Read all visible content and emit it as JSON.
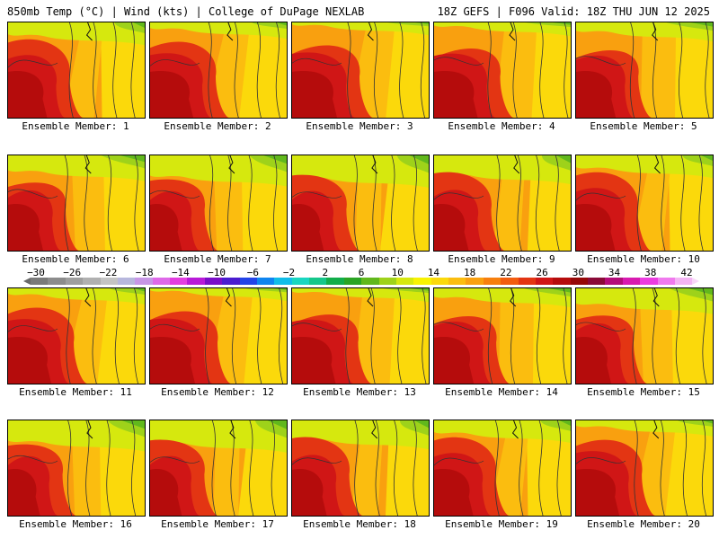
{
  "header": {
    "left_title": "850mb Temp (°C) | Wind (kts) | College of DuPage NEXLAB",
    "right_title": "18Z GEFS | F096 Valid: 18Z THU JUN 12 2025"
  },
  "members": [
    {
      "label": "Ensemble Member: 1"
    },
    {
      "label": "Ensemble Member: 2"
    },
    {
      "label": "Ensemble Member: 3"
    },
    {
      "label": "Ensemble Member: 4"
    },
    {
      "label": "Ensemble Member: 5"
    },
    {
      "label": "Ensemble Member: 6"
    },
    {
      "label": "Ensemble Member: 7"
    },
    {
      "label": "Ensemble Member: 8"
    },
    {
      "label": "Ensemble Member: 9"
    },
    {
      "label": "Ensemble Member: 10"
    },
    {
      "label": "Ensemble Member: 11"
    },
    {
      "label": "Ensemble Member: 12"
    },
    {
      "label": "Ensemble Member: 13"
    },
    {
      "label": "Ensemble Member: 14"
    },
    {
      "label": "Ensemble Member: 15"
    },
    {
      "label": "Ensemble Member: 16"
    },
    {
      "label": "Ensemble Member: 17"
    },
    {
      "label": "Ensemble Member: 18"
    },
    {
      "label": "Ensemble Member: 19"
    },
    {
      "label": "Ensemble Member: 20"
    }
  ],
  "colorbar": {
    "labels": [
      "−30",
      "−26",
      "−22",
      "−18",
      "−14",
      "−10",
      "−6",
      "−2",
      "2",
      "6",
      "10",
      "14",
      "18",
      "22",
      "26",
      "30",
      "34",
      "38",
      "42"
    ],
    "colors": [
      "#7a7a7a",
      "#8c8c8c",
      "#9e9e9e",
      "#b0b0b0",
      "#c4c4c4",
      "#b7b7dd",
      "#c796e6",
      "#de69e8",
      "#e33ee0",
      "#b81ad8",
      "#7a0ec8",
      "#4a1cd0",
      "#2344e8",
      "#0f85f0",
      "#11bde8",
      "#19d6c0",
      "#15c78a",
      "#12ad4a",
      "#2aa424",
      "#61b81c",
      "#9ed21a",
      "#d6e80e",
      "#f8f202",
      "#fbd90b",
      "#fbbd0f",
      "#f9a00f",
      "#f77f0e",
      "#f25c10",
      "#e33513",
      "#d01616",
      "#b50c0c",
      "#960808",
      "#8a0a38",
      "#b40c7a",
      "#d81ab0",
      "#ec3ce0",
      "#f07aee",
      "#f4b4f4"
    ],
    "tip_left_color": "#6a6a6a",
    "tip_right_color": "#f8d6f8"
  }
}
